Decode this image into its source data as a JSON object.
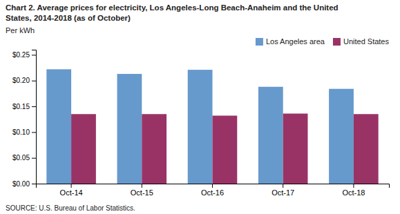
{
  "chart_data": {
    "type": "bar",
    "title": "Chart 2. Average prices for electricity, Los Angeles-Long Beach-Anaheim and the United\nStates, 2014-2018  (as of October)",
    "y_label": "Per kWh",
    "annotations": [
      "SOURCE: U.S. Bureau of Labor Statistics."
    ],
    "categories": [
      "Oct-14",
      "Oct-15",
      "Oct-16",
      "Oct-17",
      "Oct-18"
    ],
    "series": [
      {
        "name": "Los Angeles area",
        "color": "#6699CC",
        "values": [
          0.222,
          0.213,
          0.221,
          0.188,
          0.184
        ]
      },
      {
        "name": "United States",
        "color": "#993366",
        "values": [
          0.135,
          0.135,
          0.132,
          0.136,
          0.135
        ]
      }
    ],
    "ylim": [
      0.0,
      0.26
    ],
    "yticks": [
      {
        "value": 0.0,
        "label": "$0.00"
      },
      {
        "value": 0.05,
        "label": "$0.05"
      },
      {
        "value": 0.1,
        "label": "$0.10"
      },
      {
        "value": 0.15,
        "label": "$0.15"
      },
      {
        "value": 0.2,
        "label": "$0.20"
      },
      {
        "value": 0.25,
        "label": "$0.25"
      }
    ],
    "grid": false,
    "legend": "upper right"
  }
}
